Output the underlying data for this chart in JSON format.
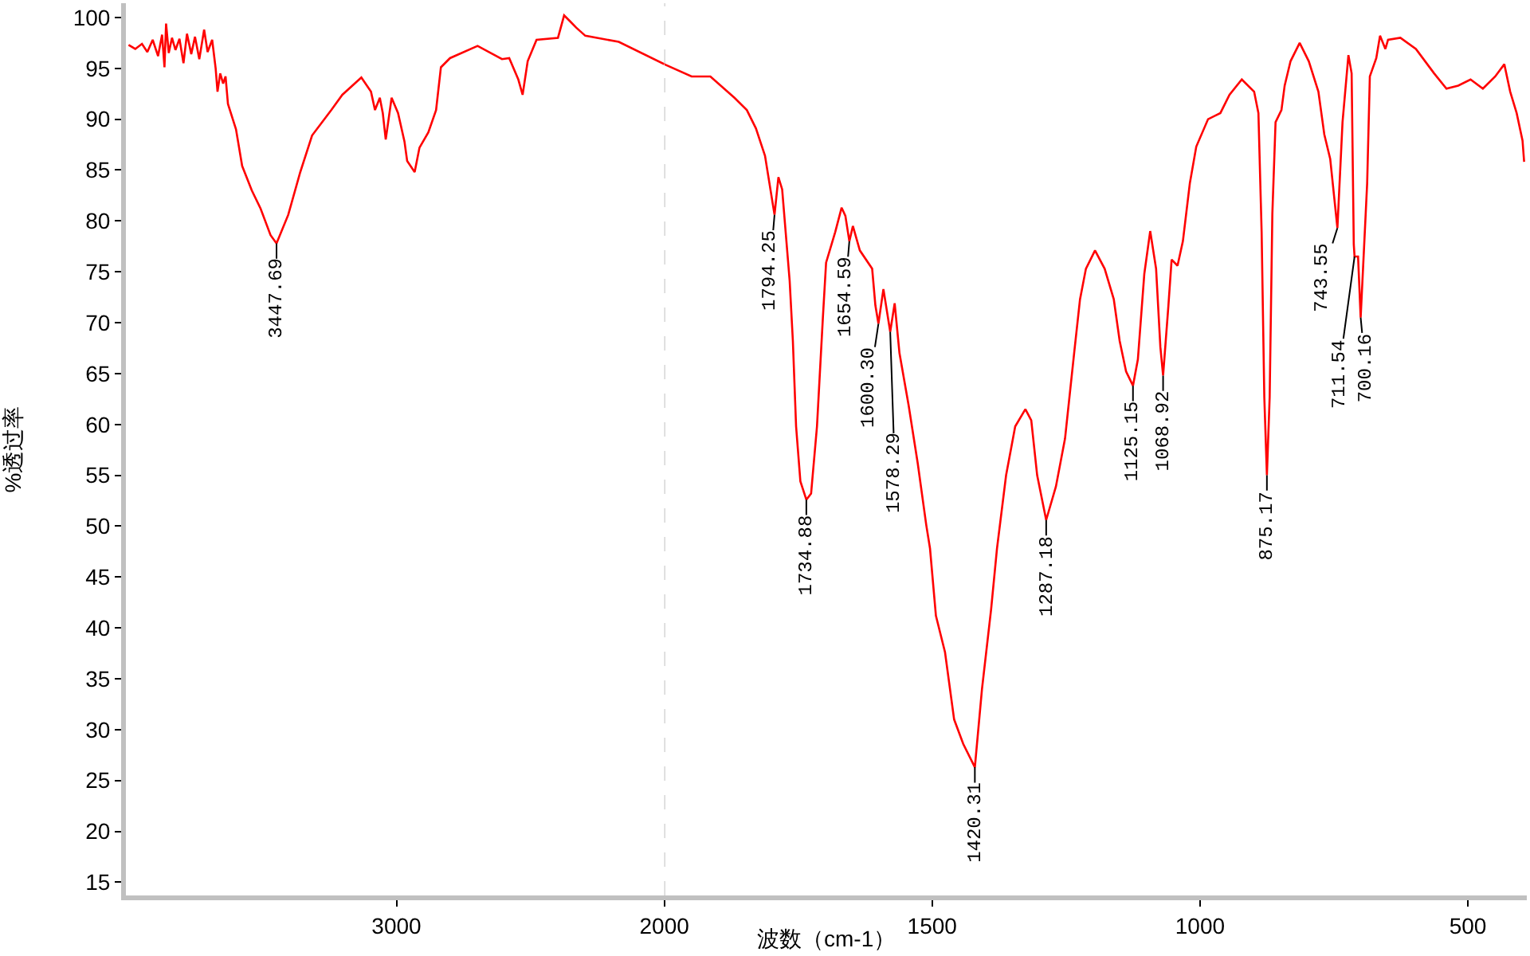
{
  "chart_data": [
    {
      "type": "line",
      "ylabel": "%透过率",
      "series": [
        {
          "color": "#ff0000",
          "x": [
            4000,
            3975,
            3950,
            3930,
            3910,
            3890,
            3875,
            3866,
            3860,
            3850,
            3838,
            3825,
            3810,
            3795,
            3782,
            3766,
            3752,
            3736,
            3718,
            3705,
            3688,
            3675,
            3668,
            3658,
            3647,
            3638,
            3629,
            3599,
            3576,
            3540,
            3507,
            3470,
            3447.69,
            3404,
            3359,
            3315,
            3243,
            3202,
            3131,
            3095,
            3080,
            3062,
            3051,
            3040,
            3018,
            2994,
            2970,
            2960,
            2932,
            2914,
            2881,
            2852,
            2834,
            2800,
            2697,
            2606,
            2579,
            2545,
            2529,
            2510,
            2477,
            2397,
            2374,
            2351,
            2329,
            2295,
            2170,
            2000
          ],
          "values": [
            97.3,
            96.9,
            97.4,
            96.6,
            97.8,
            96.2,
            98.3,
            95.1,
            99.4,
            96.5,
            98.0,
            96.8,
            97.9,
            95.5,
            98.4,
            96.4,
            98.1,
            95.9,
            98.8,
            96.6,
            97.8,
            95.0,
            92.7,
            94.5,
            93.5,
            94.2,
            91.5,
            89.0,
            85.4,
            83.0,
            81.2,
            78.6,
            77.8,
            80.6,
            84.8,
            88.4,
            90.9,
            92.4,
            94.1,
            92.7,
            90.9,
            92.1,
            90.6,
            88.0,
            92.1,
            90.6,
            87.8,
            85.9,
            84.8,
            87.2,
            88.7,
            90.9,
            95.1,
            96.0,
            97.2,
            95.9,
            96.0,
            93.9,
            92.4,
            95.7,
            97.8,
            98.0,
            100.2,
            99.6,
            99.0,
            98.2,
            97.6,
            95.4
          ]
        }
      ],
      "xlim": [
        4010,
        2000
      ],
      "xticks": [
        3000,
        2000
      ],
      "ylim": [
        13.7,
        101.4
      ],
      "yticks": [
        15,
        20,
        25,
        30,
        35,
        40,
        45,
        50,
        55,
        60,
        65,
        70,
        75,
        80,
        85,
        90,
        95,
        100
      ],
      "annotations": [
        {
          "text": "3447.69",
          "x": 3447.69,
          "y": 77.8
        }
      ]
    },
    {
      "type": "line",
      "xlabel": "波数（cm-1）",
      "series": [
        {
          "color": "#ff0000",
          "x": [
            2000,
            1949,
            1914,
            1869,
            1846,
            1829,
            1812,
            1794.25,
            1787,
            1780,
            1766,
            1760,
            1754,
            1746,
            1734.88,
            1726,
            1715,
            1704,
            1698,
            1681,
            1669,
            1662,
            1654.59,
            1648,
            1635,
            1612,
            1606,
            1600.3,
            1591,
            1578.29,
            1570,
            1561,
            1544,
            1527,
            1511,
            1504,
            1493,
            1476,
            1459,
            1442,
            1420.31,
            1407,
            1390,
            1379,
            1362,
            1345,
            1326,
            1315,
            1304,
            1287.18,
            1269,
            1252,
            1235,
            1224,
            1213,
            1196,
            1178,
            1161,
            1150,
            1138,
            1125.15,
            1116,
            1104,
            1093,
            1082,
            1074,
            1068.92,
            1059,
            1053,
            1042,
            1032,
            1019,
            1007,
            985,
            962,
            945,
            922,
            899,
            891,
            885,
            880,
            875.17,
            870,
            865,
            859,
            848,
            842,
            831,
            814,
            797,
            779,
            768,
            757,
            743.55,
            734,
            723,
            717,
            713,
            711.54,
            705,
            700.16,
            688,
            683,
            671,
            664,
            654,
            649,
            626,
            597,
            563,
            540,
            518,
            495,
            472,
            449,
            432,
            421,
            409,
            398,
            395
          ],
          "values": [
            95.4,
            94.2,
            94.2,
            92.1,
            90.9,
            89.1,
            86.4,
            80.6,
            84.3,
            83.1,
            74.1,
            68.2,
            59.8,
            54.4,
            52.6,
            53.2,
            59.8,
            70.5,
            75.9,
            78.9,
            81.3,
            80.5,
            78.0,
            79.5,
            77.1,
            75.3,
            71.7,
            69.9,
            73.3,
            69.1,
            71.9,
            67.0,
            61.9,
            56.2,
            50.1,
            47.8,
            41.2,
            37.6,
            31.0,
            28.6,
            26.3,
            34.0,
            41.8,
            47.8,
            55.0,
            59.8,
            61.5,
            60.4,
            55.0,
            50.6,
            53.9,
            58.6,
            67.0,
            72.3,
            75.3,
            77.1,
            75.3,
            72.3,
            68.2,
            65.2,
            63.8,
            66.4,
            74.8,
            79.0,
            75.3,
            67.6,
            64.8,
            71.7,
            76.2,
            75.6,
            78.0,
            83.7,
            87.3,
            90.0,
            90.6,
            92.4,
            93.9,
            92.7,
            90.6,
            78.9,
            62.7,
            55.0,
            62.7,
            80.7,
            89.7,
            90.9,
            93.3,
            95.7,
            97.5,
            95.7,
            92.7,
            88.5,
            86.1,
            79.3,
            89.7,
            96.3,
            94.5,
            77.7,
            76.5,
            76.5,
            70.5,
            83.7,
            94.2,
            96.0,
            98.2,
            96.9,
            97.8,
            98.0,
            96.9,
            94.5,
            93.0,
            93.3,
            93.9,
            93.0,
            94.2,
            95.4,
            92.7,
            90.6,
            87.9,
            85.8
          ]
        }
      ],
      "xlim": [
        2000,
        390
      ],
      "xticks": [
        1500,
        1000,
        500
      ],
      "ylim": [
        13.7,
        101.4
      ],
      "tick_labels": "x",
      "ref_lines": [
        {
          "axis": "x",
          "value": 2000,
          "color": "#c0c0c0",
          "line_style": "dashed"
        }
      ],
      "annotations": [
        {
          "text": "1794.25",
          "x": 1794.25,
          "y": 80.6
        },
        {
          "text": "1734.88",
          "x": 1734.88,
          "y": 52.6
        },
        {
          "text": "1654.59",
          "x": 1654.59,
          "y": 78.0
        },
        {
          "text": "1600.30",
          "x": 1600.3,
          "y": 69.9
        },
        {
          "text": "1578.29",
          "x": 1578.29,
          "y": 69.1
        },
        {
          "text": "1420.31",
          "x": 1420.31,
          "y": 26.3
        },
        {
          "text": "1287.18",
          "x": 1287.18,
          "y": 50.6
        },
        {
          "text": "1125.15",
          "x": 1125.15,
          "y": 63.8
        },
        {
          "text": "1068.92",
          "x": 1068.92,
          "y": 64.8
        },
        {
          "text": "875.17",
          "x": 875.17,
          "y": 55.0
        },
        {
          "text": "743.55",
          "x": 743.55,
          "y": 79.3
        },
        {
          "text": "711.54",
          "x": 711.54,
          "y": 76.5
        },
        {
          "text": "700.16",
          "x": 700.16,
          "y": 70.5
        }
      ]
    }
  ]
}
